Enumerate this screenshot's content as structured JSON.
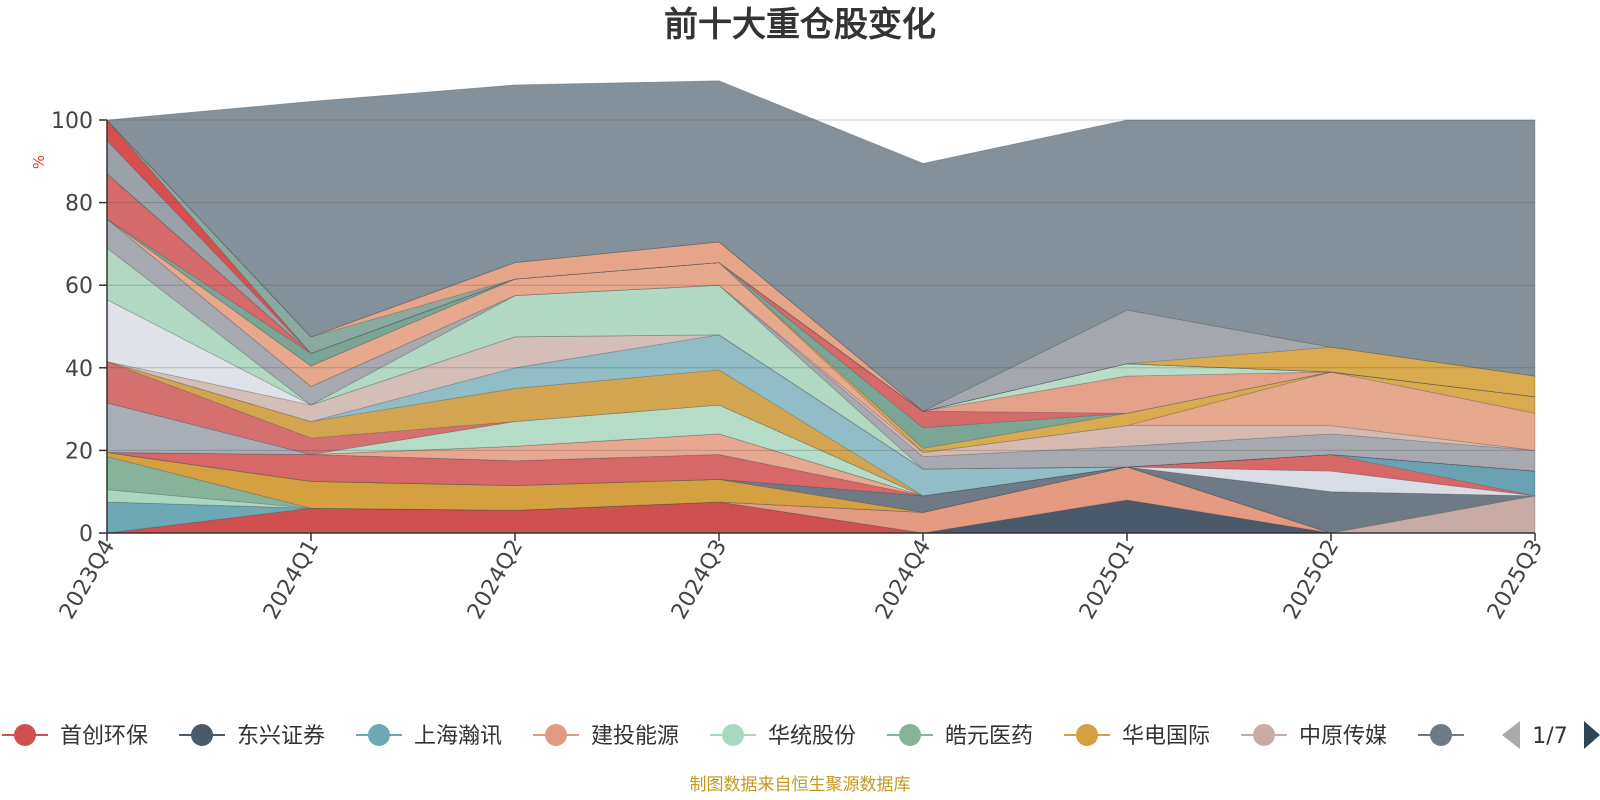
{
  "chart_data": {
    "type": "area",
    "stacked": true,
    "title": "前十大重仓股变化",
    "ylabel": "%",
    "ylim": [
      0,
      100
    ],
    "yticks": [
      0,
      20,
      40,
      60,
      80,
      100
    ],
    "categories": [
      "2023Q4",
      "2024Q1",
      "2024Q2",
      "2024Q3",
      "2024Q4",
      "2025Q1",
      "2025Q2",
      "2025Q3"
    ],
    "grid": true,
    "legend_position": "bottom",
    "legend_page": "1/7",
    "series": [
      {
        "name": "首创环保",
        "color": "#d05050",
        "values": [
          0,
          6,
          5.5,
          7.5,
          0,
          0,
          0,
          0
        ]
      },
      {
        "name": "东兴证券",
        "color": "#4a5a6a",
        "values": [
          0,
          0,
          0,
          0,
          0,
          8,
          0,
          0
        ]
      },
      {
        "name": "上海瀚讯",
        "color": "#6fa8b5",
        "values": [
          7.5,
          0,
          0,
          0,
          0,
          0,
          0,
          0
        ]
      },
      {
        "name": "建投能源",
        "color": "#e39a80",
        "values": [
          0,
          0,
          0,
          0,
          5,
          8,
          0,
          0
        ]
      },
      {
        "name": "华统股份",
        "color": "#a8d8c0",
        "values": [
          3,
          0,
          0,
          0,
          0,
          0,
          0,
          0
        ]
      },
      {
        "name": "皓元医药",
        "color": "#86b39a",
        "values": [
          8,
          0,
          0,
          0,
          0,
          0,
          0,
          0
        ]
      },
      {
        "name": "华电国际",
        "color": "#d4a040",
        "values": [
          1,
          6.5,
          6,
          5.5,
          0,
          0,
          0,
          0
        ]
      },
      {
        "name": "中原传媒",
        "color": "#c9aba5",
        "values": [
          0,
          0,
          0,
          0,
          0,
          0,
          0,
          9
        ]
      },
      {
        "name": "",
        "color": "#6e7a86",
        "values": [
          0,
          0,
          0,
          0,
          4,
          0,
          10,
          0
        ]
      },
      {
        "name": "",
        "color": "#d9dde5",
        "values": [
          0,
          0,
          0,
          0,
          0,
          0,
          5,
          0
        ]
      },
      {
        "name": "",
        "color": "#d86868",
        "values": [
          0,
          6.5,
          6,
          6,
          0,
          0,
          4,
          0
        ]
      },
      {
        "name": "",
        "color": "#6aa2b3",
        "values": [
          0,
          0,
          0,
          0,
          0,
          0,
          0,
          6
        ]
      },
      {
        "name": "",
        "color": "#e8a890",
        "values": [
          0,
          0,
          3.5,
          5,
          0,
          0,
          0,
          0
        ]
      },
      {
        "name": "",
        "color": "#a8aeb5",
        "values": [
          12,
          0,
          0,
          0,
          0,
          0,
          0,
          0
        ]
      },
      {
        "name": "",
        "color": "#b5dcc6",
        "values": [
          0,
          0,
          6,
          7,
          0,
          0,
          0,
          0
        ]
      },
      {
        "name": "",
        "color": "#d47070",
        "values": [
          10,
          4,
          0,
          0,
          0,
          0,
          0,
          0
        ]
      },
      {
        "name": "",
        "color": "#d4a550",
        "values": [
          0,
          4,
          8,
          8.5,
          0,
          0,
          0,
          0
        ]
      },
      {
        "name": "",
        "color": "#90bdc6",
        "values": [
          0,
          0,
          5,
          8.5,
          6.5,
          0,
          0,
          0
        ]
      },
      {
        "name": "",
        "color": "#d6beb8",
        "values": [
          0,
          4,
          7.5,
          0,
          0,
          0,
          0,
          0
        ]
      },
      {
        "name": "",
        "color": "#dfe2e8",
        "values": [
          15,
          0,
          0,
          0,
          0,
          0,
          0,
          0
        ]
      },
      {
        "name": "",
        "color": "#b0d8c2",
        "values": [
          12.5,
          0,
          10,
          12,
          0,
          0,
          0,
          0
        ]
      },
      {
        "name": "",
        "color": "#a6aab0",
        "values": [
          7,
          4.5,
          0,
          0,
          3,
          5,
          5,
          5
        ]
      },
      {
        "name": "",
        "color": "#d6bab2",
        "values": [
          0,
          0,
          0,
          0,
          1,
          5,
          2,
          0
        ]
      },
      {
        "name": "",
        "color": "#e6a98e",
        "values": [
          0,
          5,
          4,
          5.5,
          0,
          0,
          13,
          9
        ]
      },
      {
        "name": "",
        "color": "#d9aa50",
        "values": [
          0,
          0,
          0,
          0,
          1,
          3,
          0,
          4
        ]
      },
      {
        "name": "",
        "color": "#7ba594",
        "values": [
          0,
          3,
          0,
          0,
          5,
          0,
          0,
          0
        ]
      },
      {
        "name": "",
        "color": "#d46a6a",
        "values": [
          11,
          0,
          0,
          0,
          4,
          0,
          0,
          0
        ]
      },
      {
        "name": "",
        "color": "#e4a088",
        "values": [
          0,
          0,
          0,
          0,
          0,
          9,
          0,
          0
        ]
      },
      {
        "name": "",
        "color": "#b8dcc8",
        "values": [
          0,
          0,
          0,
          0,
          0,
          3,
          0,
          0
        ]
      },
      {
        "name": "",
        "color": "#9aa1a8",
        "values": [
          8,
          0,
          0,
          0,
          0,
          0,
          0,
          0
        ]
      },
      {
        "name": "",
        "color": "#d6504f",
        "values": [
          5,
          0,
          0,
          0,
          0,
          0,
          0,
          0
        ]
      },
      {
        "name": "",
        "color": "#8aa9a0",
        "values": [
          0,
          4,
          0,
          0,
          0,
          0,
          0,
          0
        ]
      },
      {
        "name": "",
        "color": "#e6a588",
        "values": [
          0,
          0,
          4,
          5,
          0,
          0,
          0,
          0
        ]
      },
      {
        "name": "",
        "color": "#d9ab4e",
        "values": [
          0,
          0,
          0,
          0,
          0,
          0,
          6,
          5
        ]
      },
      {
        "name": "",
        "color": "#a4a8ae",
        "values": [
          0,
          0,
          0,
          0,
          0,
          13,
          0,
          0
        ]
      },
      {
        "name": "",
        "color": "#6f8088",
        "values": [
          0,
          0,
          0,
          0,
          0,
          0,
          0,
          0
        ]
      },
      {
        "name": "",
        "color": "#85919a",
        "values": [
          0,
          57,
          43,
          39,
          60,
          46,
          55,
          62
        ]
      }
    ]
  },
  "source_text": "制图数据来自恒生聚源数据库"
}
